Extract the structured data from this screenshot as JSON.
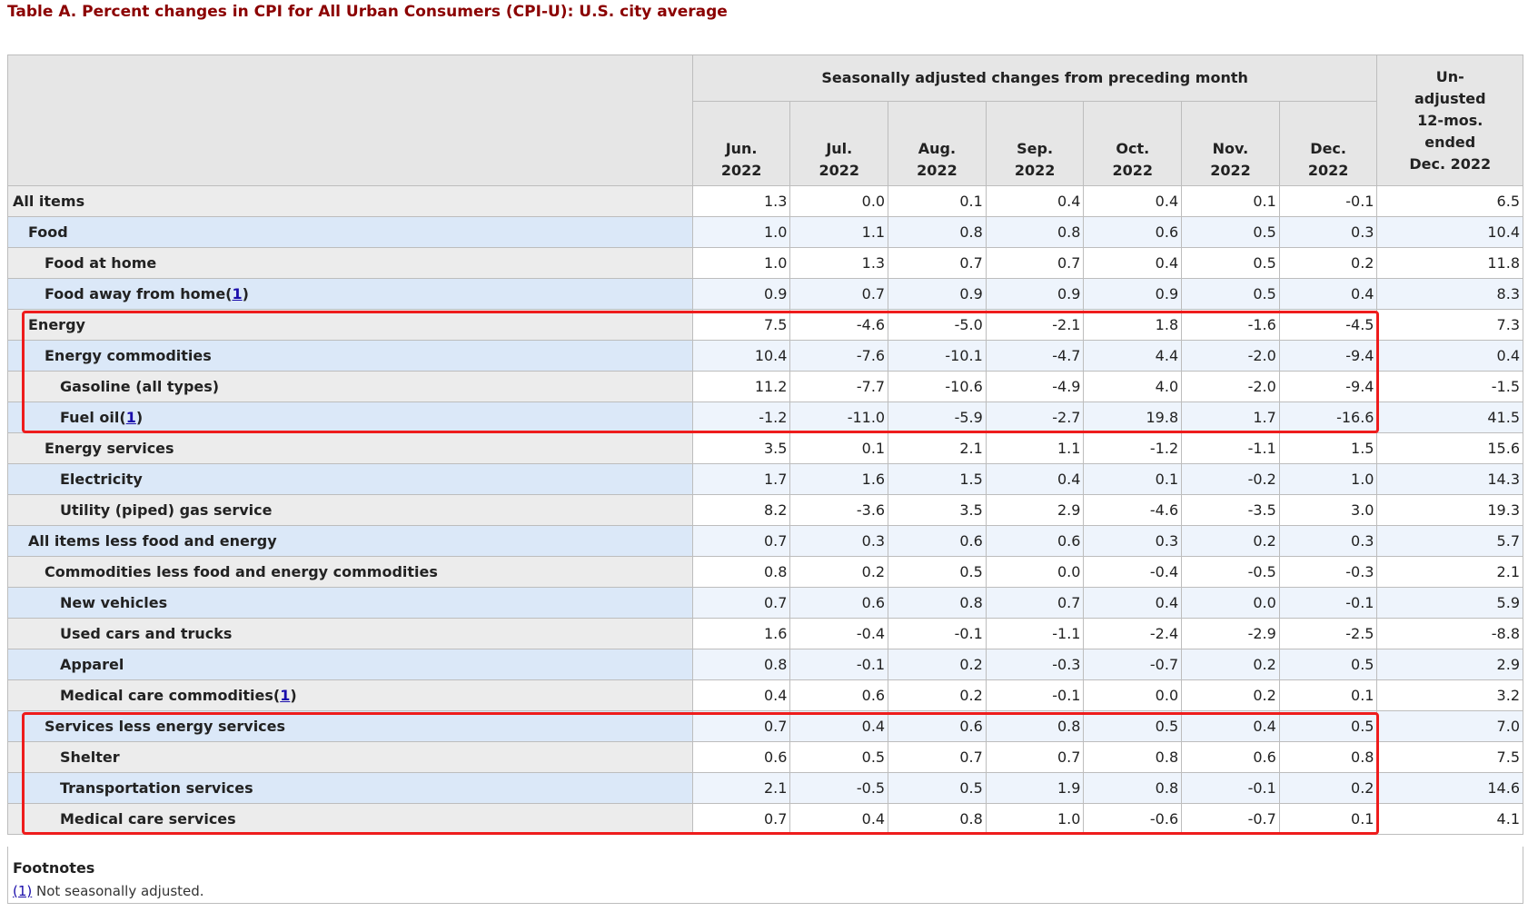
{
  "title": "Table A. Percent changes in CPI for All Urban Consumers (CPI-U): U.S. city average",
  "header": {
    "group_label": "Seasonally adjusted changes from preceding month",
    "months": [
      {
        "month": "Jun.",
        "year": "2022"
      },
      {
        "month": "Jul.",
        "year": "2022"
      },
      {
        "month": "Aug.",
        "year": "2022"
      },
      {
        "month": "Sep.",
        "year": "2022"
      },
      {
        "month": "Oct.",
        "year": "2022"
      },
      {
        "month": "Nov.",
        "year": "2022"
      },
      {
        "month": "Dec.",
        "year": "2022"
      }
    ],
    "unadjusted_lines": [
      "Un-",
      "adjusted",
      "12-mos.",
      "ended",
      "Dec. 2022"
    ]
  },
  "rows": [
    {
      "label": "All items",
      "indent": 0,
      "shade": "grey",
      "values": [
        "1.3",
        "0.0",
        "0.1",
        "0.4",
        "0.4",
        "0.1",
        "-0.1"
      ],
      "unadjusted": "6.5"
    },
    {
      "label": "Food",
      "indent": 1,
      "shade": "blue",
      "values": [
        "1.0",
        "1.1",
        "0.8",
        "0.8",
        "0.6",
        "0.5",
        "0.3"
      ],
      "unadjusted": "10.4"
    },
    {
      "label": "Food at home",
      "indent": 2,
      "shade": "grey",
      "values": [
        "1.0",
        "1.3",
        "0.7",
        "0.7",
        "0.4",
        "0.5",
        "0.2"
      ],
      "unadjusted": "11.8"
    },
    {
      "label": "Food away from home",
      "footnote": "1",
      "indent": 2,
      "shade": "blue",
      "values": [
        "0.9",
        "0.7",
        "0.9",
        "0.9",
        "0.9",
        "0.5",
        "0.4"
      ],
      "unadjusted": "8.3"
    },
    {
      "label": "Energy",
      "indent": 1,
      "shade": "grey",
      "values": [
        "7.5",
        "-4.6",
        "-5.0",
        "-2.1",
        "1.8",
        "-1.6",
        "-4.5"
      ],
      "unadjusted": "7.3"
    },
    {
      "label": "Energy commodities",
      "indent": 2,
      "shade": "blue",
      "values": [
        "10.4",
        "-7.6",
        "-10.1",
        "-4.7",
        "4.4",
        "-2.0",
        "-9.4"
      ],
      "unadjusted": "0.4"
    },
    {
      "label": "Gasoline (all types)",
      "indent": 3,
      "shade": "grey",
      "values": [
        "11.2",
        "-7.7",
        "-10.6",
        "-4.9",
        "4.0",
        "-2.0",
        "-9.4"
      ],
      "unadjusted": "-1.5"
    },
    {
      "label": "Fuel oil",
      "footnote": "1",
      "indent": 3,
      "shade": "blue",
      "values": [
        "-1.2",
        "-11.0",
        "-5.9",
        "-2.7",
        "19.8",
        "1.7",
        "-16.6"
      ],
      "unadjusted": "41.5"
    },
    {
      "label": "Energy services",
      "indent": 2,
      "shade": "grey",
      "values": [
        "3.5",
        "0.1",
        "2.1",
        "1.1",
        "-1.2",
        "-1.1",
        "1.5"
      ],
      "unadjusted": "15.6"
    },
    {
      "label": "Electricity",
      "indent": 3,
      "shade": "blue",
      "values": [
        "1.7",
        "1.6",
        "1.5",
        "0.4",
        "0.1",
        "-0.2",
        "1.0"
      ],
      "unadjusted": "14.3"
    },
    {
      "label": "Utility (piped) gas service",
      "indent": 3,
      "shade": "grey",
      "values": [
        "8.2",
        "-3.6",
        "3.5",
        "2.9",
        "-4.6",
        "-3.5",
        "3.0"
      ],
      "unadjusted": "19.3"
    },
    {
      "label": "All items less food and energy",
      "indent": 1,
      "shade": "blue",
      "values": [
        "0.7",
        "0.3",
        "0.6",
        "0.6",
        "0.3",
        "0.2",
        "0.3"
      ],
      "unadjusted": "5.7"
    },
    {
      "label": "Commodities less food and energy commodities",
      "indent": 2,
      "shade": "grey",
      "values": [
        "0.8",
        "0.2",
        "0.5",
        "0.0",
        "-0.4",
        "-0.5",
        "-0.3"
      ],
      "unadjusted": "2.1"
    },
    {
      "label": "New vehicles",
      "indent": 3,
      "shade": "blue",
      "values": [
        "0.7",
        "0.6",
        "0.8",
        "0.7",
        "0.4",
        "0.0",
        "-0.1"
      ],
      "unadjusted": "5.9"
    },
    {
      "label": "Used cars and trucks",
      "indent": 3,
      "shade": "grey",
      "values": [
        "1.6",
        "-0.4",
        "-0.1",
        "-1.1",
        "-2.4",
        "-2.9",
        "-2.5"
      ],
      "unadjusted": "-8.8"
    },
    {
      "label": "Apparel",
      "indent": 3,
      "shade": "blue",
      "values": [
        "0.8",
        "-0.1",
        "0.2",
        "-0.3",
        "-0.7",
        "0.2",
        "0.5"
      ],
      "unadjusted": "2.9"
    },
    {
      "label": "Medical care commodities",
      "footnote": "1",
      "indent": 3,
      "shade": "grey",
      "values": [
        "0.4",
        "0.6",
        "0.2",
        "-0.1",
        "0.0",
        "0.2",
        "0.1"
      ],
      "unadjusted": "3.2"
    },
    {
      "label": "Services less energy services",
      "indent": 2,
      "shade": "blue",
      "values": [
        "0.7",
        "0.4",
        "0.6",
        "0.8",
        "0.5",
        "0.4",
        "0.5"
      ],
      "unadjusted": "7.0"
    },
    {
      "label": "Shelter",
      "indent": 3,
      "shade": "grey",
      "values": [
        "0.6",
        "0.5",
        "0.7",
        "0.7",
        "0.8",
        "0.6",
        "0.8"
      ],
      "unadjusted": "7.5"
    },
    {
      "label": "Transportation services",
      "indent": 3,
      "shade": "blue",
      "values": [
        "2.1",
        "-0.5",
        "0.5",
        "1.9",
        "0.8",
        "-0.1",
        "0.2"
      ],
      "unadjusted": "14.6"
    },
    {
      "label": "Medical care services",
      "indent": 3,
      "shade": "grey",
      "values": [
        "0.7",
        "0.4",
        "0.8",
        "1.0",
        "-0.6",
        "-0.7",
        "0.1"
      ],
      "unadjusted": "4.1"
    }
  ],
  "footnotes": {
    "title": "Footnotes",
    "items": [
      {
        "marker": "(1)",
        "text": " Not seasonally adjusted."
      }
    ]
  },
  "colors": {
    "title": "#8b0000",
    "highlight_border": "#ee1c1c",
    "row_blue_label": "#dbe8f8",
    "row_grey_label": "#ececec",
    "header_bg": "#e6e6e6"
  },
  "highlights": [
    {
      "label": "Energy rows box",
      "rows": [
        "Energy",
        "Fuel oil"
      ]
    },
    {
      "label": "Services rows box",
      "rows": [
        "Services less energy services",
        "Medical care services"
      ]
    }
  ]
}
